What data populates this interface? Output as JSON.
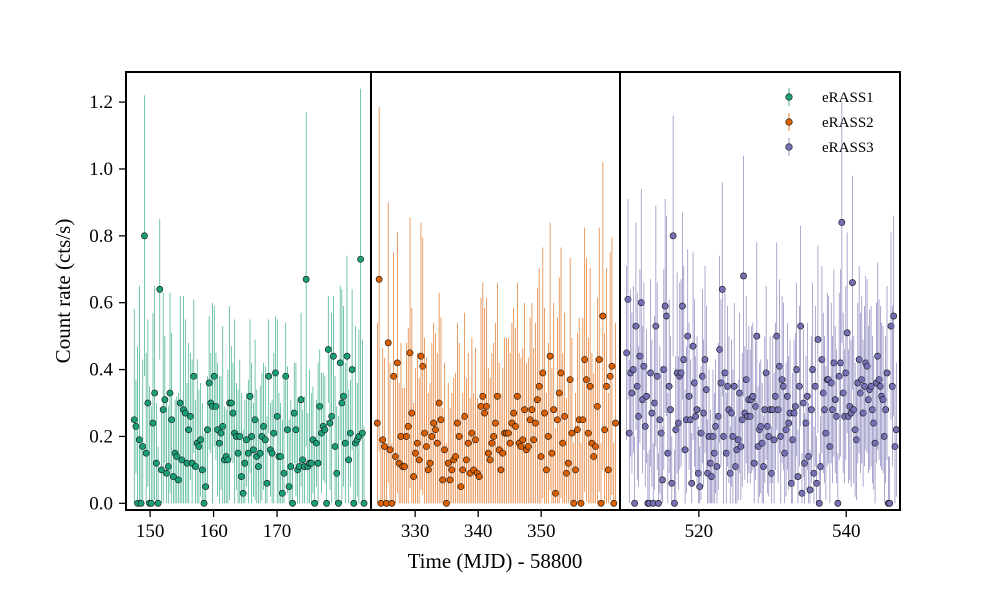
{
  "chart_data": {
    "type": "scatter",
    "xlabel": "Time (MJD) - 58800",
    "ylabel": "Count rate (cts/s)",
    "ylim": [
      -0.02,
      1.29
    ],
    "yticks": [
      0.0,
      0.2,
      0.4,
      0.6,
      0.8,
      1.0,
      1.2
    ],
    "ytick_labels": [
      "0.0",
      "0.2",
      "0.4",
      "0.6",
      "0.8",
      "1.0",
      "1.2"
    ],
    "legend_position": "top-right",
    "panels": [
      {
        "series": "eRASS1",
        "xlim": [
          146.2,
          184.8
        ],
        "xticks": [
          150,
          160,
          170
        ],
        "xtick_labels": [
          "150",
          "160",
          "170"
        ],
        "t_start": 147.5,
        "t_end": 183.7
      },
      {
        "series": "eRASS2",
        "xlim": [
          323.0,
          362.5
        ],
        "xticks": [
          330,
          340,
          350
        ],
        "xtick_labels": [
          "330",
          "340",
          "350"
        ],
        "t_start": 324.0,
        "t_end": 361.8
      },
      {
        "series": "eRASS3",
        "xlim": [
          509.3,
          547.3
        ],
        "xticks": [
          520,
          540
        ],
        "xtick_labels": [
          "520",
          "540"
        ],
        "t_start": 510.2,
        "t_end": 546.8
      }
    ],
    "series": [
      {
        "name": "eRASS1",
        "color": "#1b9e77",
        "values": [
          0.25,
          0.23,
          0.0,
          0.19,
          0.0,
          0.17,
          0.8,
          0.15,
          0.3,
          0.0,
          0.0,
          0.24,
          0.33,
          0.12,
          0.0,
          0.64,
          0.1,
          0.28,
          0.31,
          0.09,
          0.11,
          0.33,
          0.25,
          0.08,
          0.15,
          0.14,
          0.07,
          0.3,
          0.13,
          0.28,
          0.27,
          0.12,
          0.22,
          0.26,
          0.12,
          0.38,
          0.11,
          0.18,
          0.17,
          0.19,
          0.1,
          0.0,
          0.05,
          0.22,
          0.36,
          0.3,
          0.29,
          0.38,
          0.29,
          0.22,
          0.18,
          0.21,
          0.23,
          0.13,
          0.14,
          0.13,
          0.3,
          0.3,
          0.27,
          0.21,
          0.2,
          0.15,
          0.2,
          0.08,
          0.03,
          0.12,
          0.19,
          0.15,
          0.32,
          0.2,
          0.16,
          0.25,
          0.14,
          0.11,
          0.15,
          0.2,
          0.23,
          0.19,
          0.06,
          0.38,
          0.16,
          0.15,
          0.21,
          0.39,
          0.26,
          0.14,
          0.14,
          0.03,
          0.09,
          0.38,
          0.22,
          0.05,
          0.11,
          0.0,
          0.27,
          0.22,
          0.1,
          0.11,
          0.31,
          0.13,
          0.11,
          0.67,
          0.11,
          0.12,
          0.12,
          0.19,
          0.0,
          0.18,
          0.12,
          0.29,
          0.21,
          0.23,
          0.22,
          0.0,
          0.46,
          0.24,
          0.26,
          0.44,
          0.17,
          0.09,
          0.0,
          0.42,
          0.3,
          0.32,
          0.18,
          0.44,
          0.13,
          0.21,
          0.4,
          0.0,
          0.18,
          0.19,
          0.2,
          0.73,
          0.21,
          0.0
        ],
        "errors": [
          0.33,
          0.14,
          0.47,
          0.46,
          0.2,
          0.26,
          0.42,
          0.3,
          0.25,
          0.35,
          0.29,
          0.33,
          0.32,
          0.18,
          0.17,
          0.21,
          0.17,
          0.35,
          0.19,
          0.22,
          0.18,
          0.3,
          0.26,
          0.17,
          0.16,
          0.18,
          0.26,
          0.32,
          0.17,
          0.34,
          0.28,
          0.24,
          0.26,
          0.19,
          0.31,
          0.23,
          0.2,
          0.25,
          0.17,
          0.17,
          0.2,
          0.21,
          0.18,
          0.16,
          0.2,
          0.15,
          0.31,
          0.21,
          0.16,
          0.2,
          0.2,
          0.17,
          0.3,
          0.16,
          0.14,
          0.27,
          0.29,
          0.17,
          0.15,
          0.34,
          0.16,
          0.19,
          0.23,
          0.25,
          0.19,
          0.19,
          0.14,
          0.22,
          0.23,
          0.22,
          0.14,
          0.24,
          0.2,
          0.14,
          0.2,
          0.19,
          0.19,
          0.22,
          0.2,
          0.17,
          0.14,
          0.16,
          0.24,
          0.17,
          0.29,
          0.19,
          0.16,
          0.22,
          0.28,
          0.16,
          0.19,
          0.2,
          0.2,
          0.28,
          0.15,
          0.2,
          0.21,
          0.2,
          0.26,
          0.15,
          0.21,
          0.5,
          0.16,
          0.28,
          0.21,
          0.16,
          0.17,
          0.13,
          0.3,
          0.17,
          0.18,
          0.16,
          0.16,
          0.25,
          0.16,
          0.2,
          0.31,
          0.18,
          0.21,
          0.2,
          0.26,
          0.23,
          0.34,
          0.27,
          0.24,
          0.3,
          0.21,
          0.16,
          0.24,
          0.17,
          0.35,
          0.17,
          0.32,
          0.51,
          0.28,
          0.23
        ]
      },
      {
        "name": "eRASS2",
        "color": "#d95f02",
        "values": [
          0.24,
          0.67,
          0.0,
          0.19,
          0.17,
          0.0,
          0.48,
          0.16,
          0.0,
          0.38,
          0.14,
          0.42,
          0.12,
          0.2,
          0.11,
          0.11,
          0.2,
          0.23,
          0.45,
          0.27,
          0.08,
          0.15,
          0.18,
          0.13,
          0.44,
          0.41,
          0.21,
          0.17,
          0.1,
          0.12,
          0.2,
          0.24,
          0.22,
          0.18,
          0.3,
          0.25,
          0.07,
          0.16,
          0.0,
          0.12,
          0.07,
          0.1,
          0.13,
          0.14,
          0.24,
          0.2,
          0.05,
          0.1,
          0.26,
          0.13,
          0.18,
          0.09,
          0.21,
          0.1,
          0.19,
          0.09,
          0.08,
          0.29,
          0.32,
          0.27,
          0.29,
          0.15,
          0.13,
          0.18,
          0.2,
          0.24,
          0.32,
          0.16,
          0.1,
          0.15,
          0.21,
          0.21,
          0.21,
          0.18,
          0.24,
          0.27,
          0.23,
          0.32,
          0.18,
          0.17,
          0.19,
          0.28,
          0.16,
          0.17,
          0.25,
          0.28,
          0.19,
          0.24,
          0.31,
          0.35,
          0.14,
          0.39,
          0.27,
          0.1,
          0.2,
          0.44,
          0.15,
          0.28,
          0.03,
          0.25,
          0.33,
          0.39,
          0.18,
          0.26,
          0.09,
          0.12,
          0.37,
          0.21,
          0.0,
          0.1,
          0.22,
          0.25,
          0.0,
          0.25,
          0.43,
          0.37,
          0.21,
          0.35,
          0.18,
          0.14,
          0.17,
          0.29,
          0.43,
          0.0,
          0.56,
          0.22,
          0.35,
          0.1,
          0.38,
          0.41,
          0.0,
          0.24
        ]
      },
      {
        "name": "eRASS3",
        "color": "#7570b3",
        "values": [
          0.45,
          0.61,
          0.21,
          0.39,
          0.33,
          0.4,
          0.0,
          0.53,
          0.35,
          0.26,
          0.44,
          0.6,
          0.31,
          0.41,
          0.23,
          0.32,
          0.0,
          0.0,
          0.39,
          0.27,
          0.0,
          0.3,
          0.53,
          0.38,
          0.0,
          0.25,
          0.21,
          0.07,
          0.4,
          0.59,
          0.56,
          0.15,
          0.35,
          0.28,
          0.06,
          0.8,
          0.0,
          0.22,
          0.39,
          0.24,
          0.38,
          0.39,
          0.59,
          0.43,
          0.16,
          0.25,
          0.5,
          0.32,
          0.25,
          0.06,
          0.47,
          0.36,
          0.26,
          0.28,
          0.09,
          0.05,
          0.21,
          0.38,
          0.27,
          0.43,
          0.34,
          0.09,
          0.2,
          0.12,
          0.08,
          0.2,
          0.15,
          0.23,
          0.11,
          0.26,
          0.46,
          0.36,
          0.64,
          0.2,
          0.39,
          0.15,
          0.35,
          0.28,
          0.09,
          0.27,
          0.2,
          0.35,
          0.11,
          0.16,
          0.19,
          0.33,
          0.17,
          0.25,
          0.68,
          0.27,
          0.37,
          0.26,
          0.31,
          0.26,
          0.31,
          0.32,
          0.12,
          0.29,
          0.5,
          0.17,
          0.22,
          0.23,
          0.18,
          0.11,
          0.28,
          0.39,
          0.23,
          0.2,
          0.28,
          0.09,
          0.28,
          0.19,
          0.32,
          0.5,
          0.28,
          0.41,
          0.2,
          0.37,
          0.35,
          0.15,
          0.22,
          0.32,
          0.24,
          0.27,
          0.06,
          0.19,
          0.27,
          0.29,
          0.4,
          0.08,
          0.35,
          0.53,
          0.03,
          0.3,
          0.12,
          0.24,
          0.32,
          0.14,
          0.04,
          0.28,
          0.4,
          0.09,
          0.35,
          0.06,
          0.49,
          0.0,
          0.11,
          0.43,
          0.33,
          0.28,
          0.21,
          0.37,
          0.37,
          0.17,
          0.36,
          0.28,
          0.42,
          0.31,
          0.26,
          0.0,
          0.38,
          0.42,
          0.84,
          0.33,
          0.26,
          0.39,
          0.51,
          0.26,
          0.29,
          0.27,
          0.66,
          0.28,
          0.22,
          0.19,
          0.36,
          0.43,
          0.33,
          0.37,
          0.27,
          0.35,
          0.42,
          0.41,
          0.31,
          0.34,
          0.35,
          0.28,
          0.24,
          0.18,
          0.36,
          0.44,
          0.37,
          0.35,
          0.32,
          0.31,
          0.2,
          0.28,
          0.39,
          0.0,
          0.0,
          0.53,
          0.35,
          0.56,
          0.17,
          0.22
        ],
        "errors": [
          0.26,
          0.3,
          0.22,
          0.25,
          0.24,
          0.25,
          0.2,
          0.31,
          0.28,
          0.21,
          0.26,
          0.34,
          0.22,
          0.25,
          0.18,
          0.2,
          0.15,
          0.16,
          0.28,
          0.22,
          0.18,
          0.26,
          0.36,
          0.28,
          0.15,
          0.22,
          0.2,
          0.16,
          0.3,
          0.32,
          0.3,
          0.18,
          0.26,
          0.22,
          0.14,
          0.36,
          0.16,
          0.22,
          0.3,
          0.2,
          0.28,
          0.28,
          0.28,
          0.28,
          0.18,
          0.22,
          0.26,
          0.22,
          0.18,
          0.15,
          0.28,
          0.25,
          0.18,
          0.22,
          0.14,
          0.12,
          0.2,
          0.26,
          0.22,
          0.28,
          0.25,
          0.16,
          0.2,
          0.16,
          0.14,
          0.2,
          0.18,
          0.2,
          0.14,
          0.22,
          0.28,
          0.25,
          0.32,
          0.2,
          0.25,
          0.18,
          0.24,
          0.22,
          0.14,
          0.22,
          0.2,
          0.25,
          0.15,
          0.18,
          0.18,
          0.24,
          0.16,
          0.2,
          0.36,
          0.2,
          0.25,
          0.2,
          0.22,
          0.2,
          0.22,
          0.22,
          0.16,
          0.22,
          0.28,
          0.18,
          0.2,
          0.2,
          0.18,
          0.15,
          0.22,
          0.26,
          0.2,
          0.18,
          0.22,
          0.14,
          0.22,
          0.2,
          0.22,
          0.28,
          0.22,
          0.26,
          0.2,
          0.25,
          0.25,
          0.18,
          0.2,
          0.22,
          0.2,
          0.22,
          0.14,
          0.2,
          0.22,
          0.22,
          0.26,
          0.14,
          0.24,
          0.3,
          0.12,
          0.22,
          0.15,
          0.2,
          0.22,
          0.16,
          0.12,
          0.22,
          0.26,
          0.14,
          0.24,
          0.14,
          0.28,
          0.15,
          0.15,
          0.28,
          0.24,
          0.22,
          0.2,
          0.26,
          0.25,
          0.18,
          0.24,
          0.22,
          0.28,
          0.22,
          0.2,
          0.15,
          0.25,
          0.28,
          0.36,
          0.24,
          0.2,
          0.26,
          0.3,
          0.2,
          0.22,
          0.22,
          0.32,
          0.22,
          0.2,
          0.18,
          0.24,
          0.28,
          0.24,
          0.25,
          0.22,
          0.24,
          0.26,
          0.26,
          0.22,
          0.24,
          0.24,
          0.22,
          0.2,
          0.18,
          0.24,
          0.28,
          0.24,
          0.24,
          0.22,
          0.22,
          0.2,
          0.22,
          0.26,
          0.14,
          0.14,
          0.28,
          0.24,
          0.3,
          0.18,
          0.2
        ]
      }
    ],
    "legend": [
      "eRASS1",
      "eRASS2",
      "eRASS3"
    ]
  }
}
